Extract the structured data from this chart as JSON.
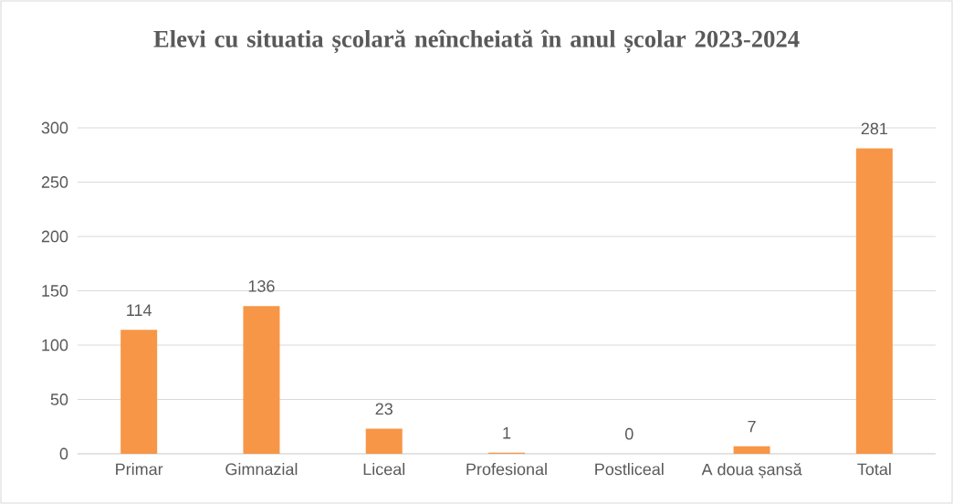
{
  "chart_data": {
    "type": "bar",
    "title": "Elevi cu situatia școlară neîncheiată în anul școlar 2023-2024",
    "categories": [
      "Primar",
      "Gimnazial",
      "Liceal",
      "Profesional",
      "Postliceal",
      "A doua șansă",
      "Total"
    ],
    "values": [
      114,
      136,
      23,
      1,
      0,
      7,
      281
    ],
    "color": "#f79646",
    "ylim": [
      0,
      300
    ],
    "yticks": [
      0,
      50,
      100,
      150,
      200,
      250,
      300
    ],
    "grid": "y",
    "data_labels": true
  }
}
